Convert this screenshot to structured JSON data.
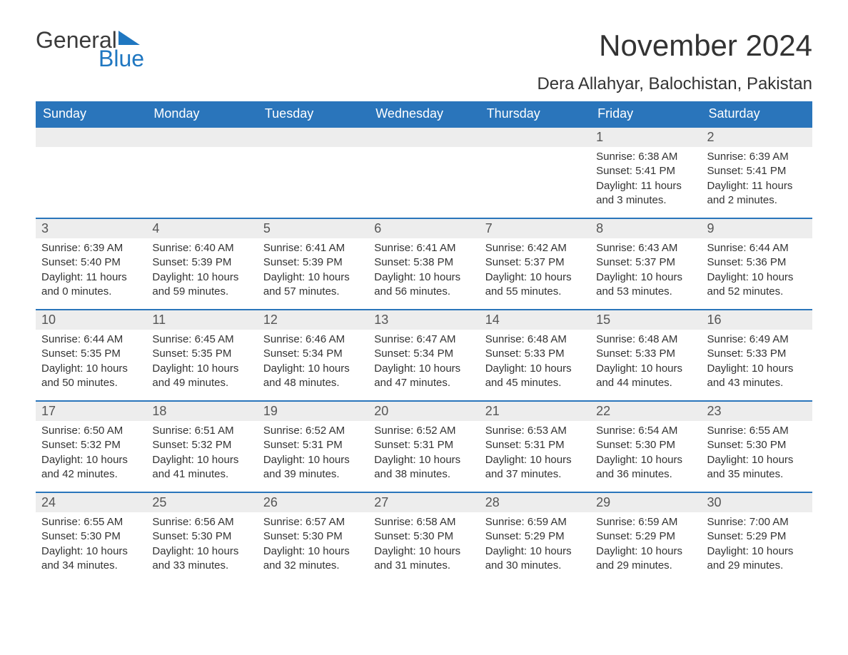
{
  "brand": {
    "word1": "General",
    "word2": "Blue"
  },
  "title": "November 2024",
  "location": "Dera Allahyar, Balochistan, Pakistan",
  "colors": {
    "header_bg": "#2a75bb",
    "header_text": "#ffffff",
    "daynum_bg": "#ededed",
    "row_border": "#2a75bb",
    "body_text": "#333333",
    "brand_blue": "#1f77c1",
    "page_bg": "#ffffff"
  },
  "fonts": {
    "title_size_pt": 32,
    "location_size_pt": 18,
    "header_size_pt": 14,
    "daynum_size_pt": 14,
    "body_size_pt": 11
  },
  "calendar": {
    "type": "table",
    "columns": [
      "Sunday",
      "Monday",
      "Tuesday",
      "Wednesday",
      "Thursday",
      "Friday",
      "Saturday"
    ],
    "weeks": [
      [
        null,
        null,
        null,
        null,
        null,
        {
          "n": "1",
          "sunrise": "6:38 AM",
          "sunset": "5:41 PM",
          "daylight": "11 hours and 3 minutes."
        },
        {
          "n": "2",
          "sunrise": "6:39 AM",
          "sunset": "5:41 PM",
          "daylight": "11 hours and 2 minutes."
        }
      ],
      [
        {
          "n": "3",
          "sunrise": "6:39 AM",
          "sunset": "5:40 PM",
          "daylight": "11 hours and 0 minutes."
        },
        {
          "n": "4",
          "sunrise": "6:40 AM",
          "sunset": "5:39 PM",
          "daylight": "10 hours and 59 minutes."
        },
        {
          "n": "5",
          "sunrise": "6:41 AM",
          "sunset": "5:39 PM",
          "daylight": "10 hours and 57 minutes."
        },
        {
          "n": "6",
          "sunrise": "6:41 AM",
          "sunset": "5:38 PM",
          "daylight": "10 hours and 56 minutes."
        },
        {
          "n": "7",
          "sunrise": "6:42 AM",
          "sunset": "5:37 PM",
          "daylight": "10 hours and 55 minutes."
        },
        {
          "n": "8",
          "sunrise": "6:43 AM",
          "sunset": "5:37 PM",
          "daylight": "10 hours and 53 minutes."
        },
        {
          "n": "9",
          "sunrise": "6:44 AM",
          "sunset": "5:36 PM",
          "daylight": "10 hours and 52 minutes."
        }
      ],
      [
        {
          "n": "10",
          "sunrise": "6:44 AM",
          "sunset": "5:35 PM",
          "daylight": "10 hours and 50 minutes."
        },
        {
          "n": "11",
          "sunrise": "6:45 AM",
          "sunset": "5:35 PM",
          "daylight": "10 hours and 49 minutes."
        },
        {
          "n": "12",
          "sunrise": "6:46 AM",
          "sunset": "5:34 PM",
          "daylight": "10 hours and 48 minutes."
        },
        {
          "n": "13",
          "sunrise": "6:47 AM",
          "sunset": "5:34 PM",
          "daylight": "10 hours and 47 minutes."
        },
        {
          "n": "14",
          "sunrise": "6:48 AM",
          "sunset": "5:33 PM",
          "daylight": "10 hours and 45 minutes."
        },
        {
          "n": "15",
          "sunrise": "6:48 AM",
          "sunset": "5:33 PM",
          "daylight": "10 hours and 44 minutes."
        },
        {
          "n": "16",
          "sunrise": "6:49 AM",
          "sunset": "5:33 PM",
          "daylight": "10 hours and 43 minutes."
        }
      ],
      [
        {
          "n": "17",
          "sunrise": "6:50 AM",
          "sunset": "5:32 PM",
          "daylight": "10 hours and 42 minutes."
        },
        {
          "n": "18",
          "sunrise": "6:51 AM",
          "sunset": "5:32 PM",
          "daylight": "10 hours and 41 minutes."
        },
        {
          "n": "19",
          "sunrise": "6:52 AM",
          "sunset": "5:31 PM",
          "daylight": "10 hours and 39 minutes."
        },
        {
          "n": "20",
          "sunrise": "6:52 AM",
          "sunset": "5:31 PM",
          "daylight": "10 hours and 38 minutes."
        },
        {
          "n": "21",
          "sunrise": "6:53 AM",
          "sunset": "5:31 PM",
          "daylight": "10 hours and 37 minutes."
        },
        {
          "n": "22",
          "sunrise": "6:54 AM",
          "sunset": "5:30 PM",
          "daylight": "10 hours and 36 minutes."
        },
        {
          "n": "23",
          "sunrise": "6:55 AM",
          "sunset": "5:30 PM",
          "daylight": "10 hours and 35 minutes."
        }
      ],
      [
        {
          "n": "24",
          "sunrise": "6:55 AM",
          "sunset": "5:30 PM",
          "daylight": "10 hours and 34 minutes."
        },
        {
          "n": "25",
          "sunrise": "6:56 AM",
          "sunset": "5:30 PM",
          "daylight": "10 hours and 33 minutes."
        },
        {
          "n": "26",
          "sunrise": "6:57 AM",
          "sunset": "5:30 PM",
          "daylight": "10 hours and 32 minutes."
        },
        {
          "n": "27",
          "sunrise": "6:58 AM",
          "sunset": "5:30 PM",
          "daylight": "10 hours and 31 minutes."
        },
        {
          "n": "28",
          "sunrise": "6:59 AM",
          "sunset": "5:29 PM",
          "daylight": "10 hours and 30 minutes."
        },
        {
          "n": "29",
          "sunrise": "6:59 AM",
          "sunset": "5:29 PM",
          "daylight": "10 hours and 29 minutes."
        },
        {
          "n": "30",
          "sunrise": "7:00 AM",
          "sunset": "5:29 PM",
          "daylight": "10 hours and 29 minutes."
        }
      ]
    ],
    "labels": {
      "sunrise_prefix": "Sunrise: ",
      "sunset_prefix": "Sunset: ",
      "daylight_prefix": "Daylight: "
    }
  }
}
